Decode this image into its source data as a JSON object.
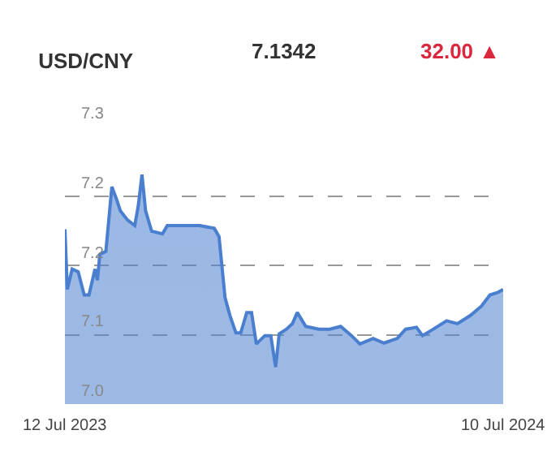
{
  "chart_data": {
    "type": "area",
    "title": "USD/CNY",
    "annotations": [
      "7.1342",
      "32.00 ▲"
    ],
    "x": [
      "2023-07-12",
      "2023-07-14",
      "2023-07-18",
      "2023-07-23",
      "2023-07-28",
      "2023-08-01",
      "2023-08-06",
      "2023-08-08",
      "2023-08-10",
      "2023-08-15",
      "2023-08-20",
      "2023-08-24",
      "2023-08-27",
      "2023-09-02",
      "2023-09-08",
      "2023-09-11",
      "2023-09-14",
      "2023-09-17",
      "2023-09-22",
      "2023-10-01",
      "2023-10-05",
      "2023-10-19",
      "2023-11-01",
      "2023-11-13",
      "2023-11-17",
      "2023-11-22",
      "2023-11-26",
      "2023-12-01",
      "2023-12-05",
      "2023-12-10",
      "2023-12-14",
      "2023-12-18",
      "2023-12-25",
      "2023-12-30",
      "2024-01-03",
      "2024-01-06",
      "2024-01-12",
      "2024-01-17",
      "2024-01-21",
      "2024-01-28",
      "2024-02-08",
      "2024-02-17",
      "2024-02-26",
      "2024-03-06",
      "2024-03-13",
      "2024-03-24",
      "2024-04-02",
      "2024-04-13",
      "2024-04-20",
      "2024-04-29",
      "2024-05-04",
      "2024-05-13",
      "2024-05-24",
      "2024-06-02",
      "2024-06-13",
      "2024-06-22",
      "2024-06-29",
      "2024-07-06",
      "2024-07-10"
    ],
    "series": [
      {
        "color": "#4a7fcf",
        "values": [
          7.189,
          7.124,
          7.146,
          7.143,
          7.118,
          7.118,
          7.146,
          7.134,
          7.162,
          7.165,
          7.235,
          7.221,
          7.209,
          7.199,
          7.193,
          7.215,
          7.248,
          7.209,
          7.187,
          7.184,
          7.193,
          7.193,
          7.193,
          7.19,
          7.181,
          7.115,
          7.096,
          7.077,
          7.077,
          7.099,
          7.099,
          7.065,
          7.074,
          7.074,
          7.04,
          7.076,
          7.081,
          7.087,
          7.099,
          7.084,
          7.081,
          7.081,
          7.084,
          7.074,
          7.065,
          7.071,
          7.066,
          7.071,
          7.081,
          7.083,
          7.074,
          7.081,
          7.09,
          7.087,
          7.096,
          7.106,
          7.118,
          7.121,
          7.124
        ]
      }
    ],
    "xlim": [
      "2023-07-12",
      "2024-07-10"
    ],
    "xticks": [
      {
        "value": "2023-07-12",
        "label": "12 Jul 2023"
      },
      {
        "value": "2024-07-10",
        "label": "10 Jul 2024"
      }
    ],
    "ylim": [
      7.0,
      7.3
    ],
    "yticks": [
      {
        "value": 7.0,
        "label": "7.0"
      },
      {
        "value": 7.075,
        "label": "7.1"
      },
      {
        "value": 7.15,
        "label": "7.2"
      },
      {
        "value": 7.225,
        "label": "7.2"
      },
      {
        "value": 7.3,
        "label": "7.3"
      }
    ],
    "grid": "y",
    "marker": "none",
    "line_style": "solid"
  }
}
